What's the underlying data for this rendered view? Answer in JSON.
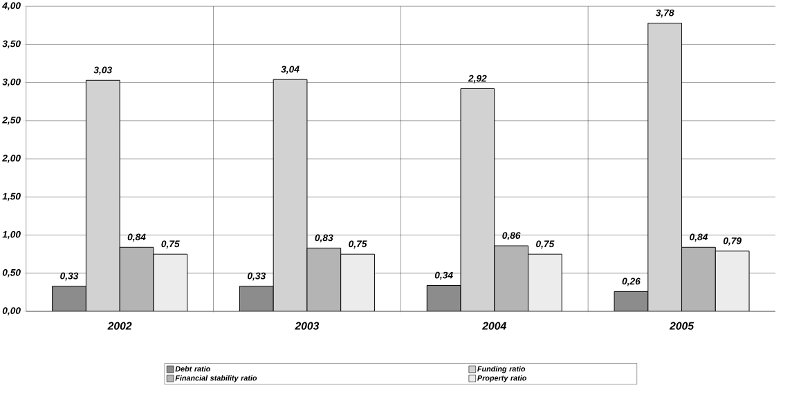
{
  "chart_data": {
    "type": "bar",
    "categories": [
      "2002",
      "2003",
      "2004",
      "2005"
    ],
    "series": [
      {
        "name": "Debt ratio",
        "color": "#8c8c8c",
        "values": [
          0.33,
          0.33,
          0.34,
          0.26
        ],
        "value_labels": [
          "0,33",
          "0,33",
          "0,34",
          "0,26"
        ]
      },
      {
        "name": "Funding ratio",
        "color": "#d2d2d2",
        "values": [
          3.03,
          3.04,
          2.92,
          3.78
        ],
        "value_labels": [
          "3,03",
          "3,04",
          "2,92",
          "3,78"
        ]
      },
      {
        "name": "Financial stability ratio",
        "color": "#b4b4b4",
        "values": [
          0.84,
          0.83,
          0.86,
          0.84
        ],
        "value_labels": [
          "0,84",
          "0,83",
          "0,86",
          "0,84"
        ]
      },
      {
        "name": "Property ratio",
        "color": "#ececec",
        "values": [
          0.75,
          0.75,
          0.75,
          0.79
        ],
        "value_labels": [
          "0,75",
          "0,75",
          "0,75",
          "0,79"
        ]
      }
    ],
    "ylim": [
      0,
      4
    ],
    "yticks": [
      {
        "value": 0,
        "label": "0,00"
      },
      {
        "value": 0.5,
        "label": "0,50"
      },
      {
        "value": 1,
        "label": "1,00"
      },
      {
        "value": 1.5,
        "label": "1,50"
      },
      {
        "value": 2,
        "label": "2,00"
      },
      {
        "value": 2.5,
        "label": "2,50"
      },
      {
        "value": 3,
        "label": "3,00"
      },
      {
        "value": 3.5,
        "label": "3,50"
      },
      {
        "value": 4,
        "label": "4,00"
      }
    ],
    "grid": true,
    "legend": "bottom"
  }
}
